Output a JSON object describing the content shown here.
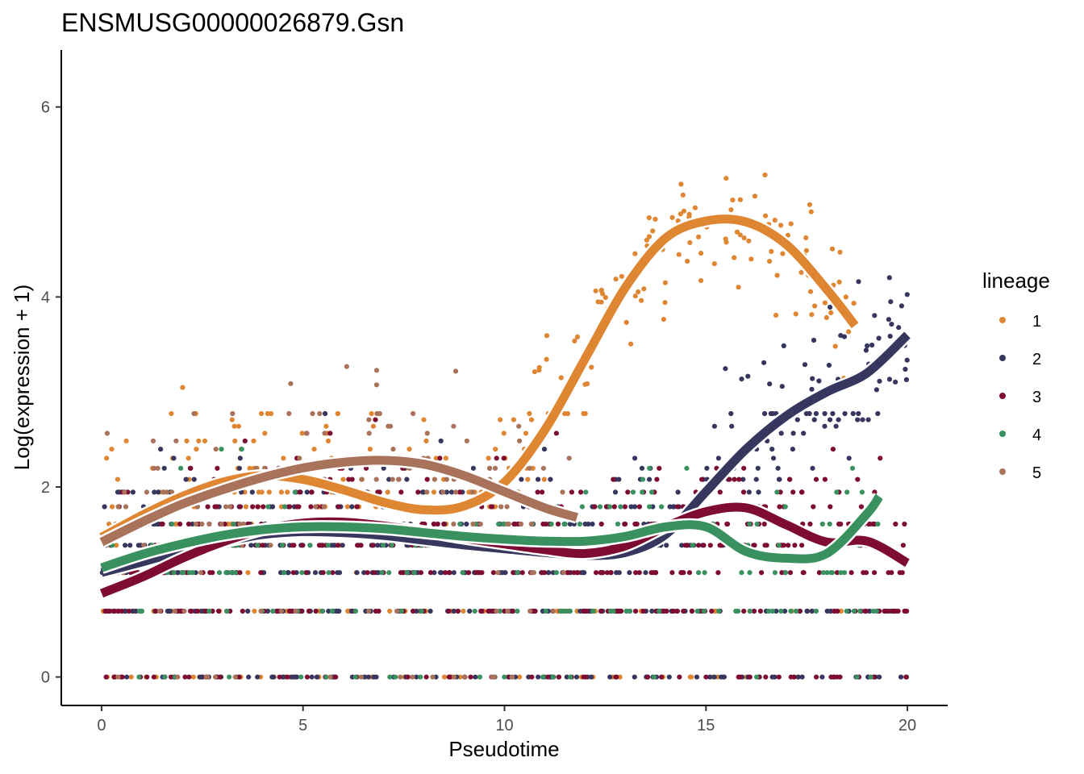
{
  "chart_data": {
    "type": "scatter",
    "title": "ENSMUSG00000026879.Gsn",
    "xlabel": "Pseudotime",
    "ylabel": "Log(expression + 1)",
    "xlim": [
      -1,
      21
    ],
    "ylim": [
      -0.3,
      6.6
    ],
    "x_ticks": [
      0,
      5,
      10,
      15,
      20
    ],
    "x_tick_labels": [
      "0",
      "5",
      "10",
      "15",
      "20"
    ],
    "y_ticks": [
      0,
      2,
      4,
      6
    ],
    "y_tick_labels": [
      "0",
      "2",
      "4",
      "6"
    ],
    "grid": false,
    "legend": {
      "title": "lineage",
      "position": "right"
    },
    "series": [
      {
        "name": "1",
        "color": "#df8633",
        "x_range": [
          0,
          18.7
        ],
        "smooth": [
          [
            0,
            1.47
          ],
          [
            1,
            1.7
          ],
          [
            2,
            1.9
          ],
          [
            3,
            2.05
          ],
          [
            4,
            2.12
          ],
          [
            5,
            2.08
          ],
          [
            6,
            1.97
          ],
          [
            7,
            1.84
          ],
          [
            8,
            1.76
          ],
          [
            9,
            1.8
          ],
          [
            10,
            2.05
          ],
          [
            11,
            2.6
          ],
          [
            12,
            3.35
          ],
          [
            13,
            4.1
          ],
          [
            14,
            4.62
          ],
          [
            15,
            4.8
          ],
          [
            16,
            4.79
          ],
          [
            17,
            4.55
          ],
          [
            18,
            4.08
          ],
          [
            18.7,
            3.7
          ]
        ]
      },
      {
        "name": "2",
        "color": "#36365e",
        "x_range": [
          0,
          20
        ],
        "smooth": [
          [
            0,
            1.1
          ],
          [
            1,
            1.21
          ],
          [
            2,
            1.33
          ],
          [
            3,
            1.42
          ],
          [
            4,
            1.5
          ],
          [
            5,
            1.53
          ],
          [
            6,
            1.52
          ],
          [
            7,
            1.49
          ],
          [
            8,
            1.44
          ],
          [
            9,
            1.39
          ],
          [
            10,
            1.35
          ],
          [
            11,
            1.31
          ],
          [
            12,
            1.28
          ],
          [
            13,
            1.31
          ],
          [
            14,
            1.5
          ],
          [
            15,
            1.95
          ],
          [
            16,
            2.4
          ],
          [
            17,
            2.75
          ],
          [
            18,
            3.0
          ],
          [
            19,
            3.2
          ],
          [
            20,
            3.6
          ]
        ]
      },
      {
        "name": "3",
        "color": "#7e0c32",
        "x_range": [
          0,
          20
        ],
        "smooth": [
          [
            0,
            0.88
          ],
          [
            1,
            1.05
          ],
          [
            2,
            1.25
          ],
          [
            3,
            1.42
          ],
          [
            4,
            1.55
          ],
          [
            5,
            1.62
          ],
          [
            6,
            1.63
          ],
          [
            7,
            1.59
          ],
          [
            8,
            1.53
          ],
          [
            9,
            1.46
          ],
          [
            10,
            1.4
          ],
          [
            11,
            1.34
          ],
          [
            12,
            1.3
          ],
          [
            13,
            1.38
          ],
          [
            14,
            1.58
          ],
          [
            15,
            1.74
          ],
          [
            16,
            1.78
          ],
          [
            17,
            1.6
          ],
          [
            18,
            1.42
          ],
          [
            19,
            1.43
          ],
          [
            20,
            1.2
          ]
        ]
      },
      {
        "name": "4",
        "color": "#3a9160",
        "x_range": [
          0,
          19.3
        ],
        "smooth": [
          [
            0,
            1.15
          ],
          [
            1,
            1.29
          ],
          [
            2,
            1.4
          ],
          [
            3,
            1.49
          ],
          [
            4,
            1.55
          ],
          [
            5,
            1.58
          ],
          [
            6,
            1.58
          ],
          [
            7,
            1.56
          ],
          [
            8,
            1.52
          ],
          [
            9,
            1.48
          ],
          [
            10,
            1.45
          ],
          [
            11,
            1.43
          ],
          [
            12,
            1.43
          ],
          [
            13,
            1.48
          ],
          [
            14,
            1.58
          ],
          [
            15,
            1.58
          ],
          [
            16,
            1.32
          ],
          [
            17,
            1.25
          ],
          [
            18,
            1.3
          ],
          [
            19,
            1.72
          ],
          [
            19.3,
            1.9
          ]
        ]
      },
      {
        "name": "5",
        "color": "#a9725b",
        "x_range": [
          0,
          11.8
        ],
        "smooth": [
          [
            0,
            1.42
          ],
          [
            1,
            1.63
          ],
          [
            2,
            1.82
          ],
          [
            3,
            1.97
          ],
          [
            4,
            2.1
          ],
          [
            5,
            2.2
          ],
          [
            6,
            2.26
          ],
          [
            7,
            2.28
          ],
          [
            8,
            2.24
          ],
          [
            9,
            2.12
          ],
          [
            10,
            1.95
          ],
          [
            11,
            1.78
          ],
          [
            11.8,
            1.68
          ]
        ]
      }
    ]
  }
}
